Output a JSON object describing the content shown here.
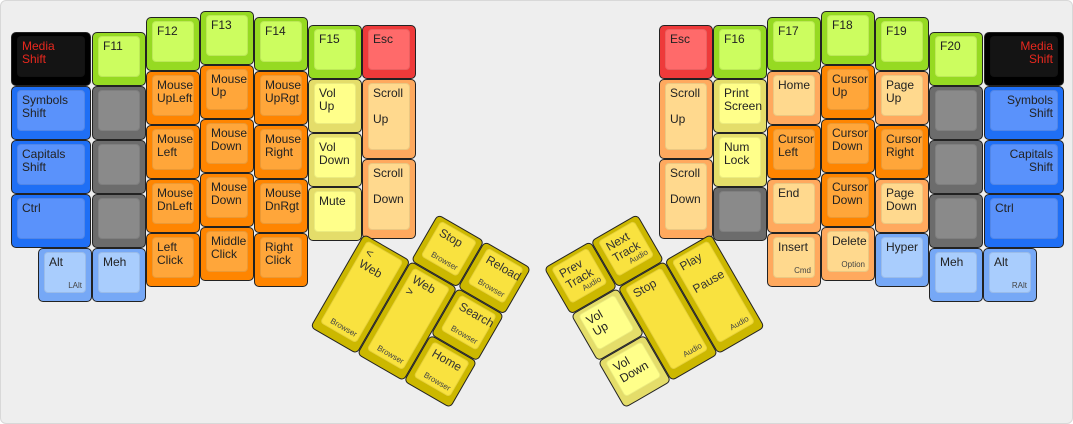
{
  "palette": {
    "black": {
      "outer": "#000000",
      "inner": "#141414",
      "text": "#e8281e"
    },
    "blue": {
      "outer": "#1f6ff5",
      "inner": "#5a92fb",
      "text": "#222222"
    },
    "lightblue": {
      "outer": "#76a8f6",
      "inner": "#a9cdfd",
      "text": "#222222"
    },
    "gray": {
      "outer": "#6c6c6c",
      "inner": "#8a8a8a",
      "text": "#222222"
    },
    "green": {
      "outer": "#96da22",
      "inner": "#ccfd5f",
      "text": "#222222"
    },
    "orange": {
      "outer": "#ff8500",
      "inner": "#ffa63a",
      "text": "#222222"
    },
    "lightorange": {
      "outer": "#ffa95e",
      "inner": "#ffd98e",
      "text": "#222222"
    },
    "lightyellow": {
      "outer": "#e4dd6a",
      "inner": "#ffff8a",
      "text": "#222222"
    },
    "red": {
      "outer": "#ee3a3a",
      "inner": "#ff6a6a",
      "text": "#222222"
    },
    "yellow": {
      "outer": "#ccb800",
      "inner": "#f9e23f",
      "text": "#333333"
    }
  },
  "left": {
    "keys": [
      {
        "label": "Media\nShift",
        "color": "black"
      },
      {
        "label": "Symbols\nShift",
        "color": "blue"
      },
      {
        "label": "Capitals\nShift",
        "color": "blue"
      },
      {
        "label": "Ctrl",
        "color": "blue"
      },
      {
        "label": "Alt",
        "sub": "LAlt",
        "color": "lightblue"
      },
      {
        "label": "F11",
        "color": "green"
      },
      {
        "label": "",
        "color": "gray"
      },
      {
        "label": "",
        "color": "gray"
      },
      {
        "label": "",
        "color": "gray"
      },
      {
        "label": "Meh",
        "color": "lightblue"
      },
      {
        "label": "F12",
        "color": "green"
      },
      {
        "label": "Mouse\nUpLeft",
        "color": "orange"
      },
      {
        "label": "Mouse\nLeft",
        "color": "orange"
      },
      {
        "label": "Mouse\nDnLeft",
        "color": "orange"
      },
      {
        "label": "Left\nClick",
        "color": "orange"
      },
      {
        "label": "F13",
        "color": "green"
      },
      {
        "label": "Mouse\nUp",
        "color": "orange"
      },
      {
        "label": "Mouse\nDown",
        "color": "orange"
      },
      {
        "label": "Mouse\nDown",
        "color": "orange"
      },
      {
        "label": "Middle\nClick",
        "color": "orange"
      },
      {
        "label": "F14",
        "color": "green"
      },
      {
        "label": "Mouse\nUpRgt",
        "color": "orange"
      },
      {
        "label": "Mouse\nRight",
        "color": "orange"
      },
      {
        "label": "Mouse\nDnRgt",
        "color": "orange"
      },
      {
        "label": "Right\nClick",
        "color": "orange"
      },
      {
        "label": "F15",
        "color": "green"
      },
      {
        "label": "Vol\nUp",
        "color": "lightyellow"
      },
      {
        "label": "Vol\nDown",
        "color": "lightyellow"
      },
      {
        "label": "Mute",
        "color": "lightyellow"
      },
      {
        "label": "Esc",
        "color": "red"
      },
      {
        "label": "Scroll\n\nUp",
        "color": "lightorange"
      },
      {
        "label": "Scroll\n\nDown",
        "color": "lightorange"
      }
    ],
    "thumb": [
      {
        "label": "Stop",
        "sub": "Browser",
        "color": "yellow"
      },
      {
        "label": "Reload",
        "sub": "Browser",
        "color": "yellow"
      },
      {
        "label": "< Web",
        "sub": "Browser",
        "color": "yellow"
      },
      {
        "label": "Web >",
        "sub": "Browser",
        "color": "yellow"
      },
      {
        "label": "Search",
        "sub": "Browser",
        "color": "yellow"
      },
      {
        "label": "Home",
        "sub": "Browser",
        "color": "yellow"
      }
    ]
  },
  "right": {
    "keys": [
      {
        "label": "Media\nShift",
        "color": "black"
      },
      {
        "label": "Symbols\nShift",
        "color": "blue"
      },
      {
        "label": "Capitals\nShift",
        "color": "blue"
      },
      {
        "label": "Ctrl",
        "color": "blue"
      },
      {
        "label": "Alt",
        "sub": "RAlt",
        "color": "lightblue"
      },
      {
        "label": "F20",
        "color": "green"
      },
      {
        "label": "",
        "color": "gray"
      },
      {
        "label": "",
        "color": "gray"
      },
      {
        "label": "",
        "color": "gray"
      },
      {
        "label": "Meh",
        "color": "lightblue"
      },
      {
        "label": "F19",
        "color": "green"
      },
      {
        "label": "Page\nUp",
        "color": "lightorange"
      },
      {
        "label": "Cursor\nRight",
        "color": "orange"
      },
      {
        "label": "Page\nDown",
        "color": "lightorange"
      },
      {
        "label": "Hyper",
        "color": "lightblue"
      },
      {
        "label": "F18",
        "color": "green"
      },
      {
        "label": "Cursor\nUp",
        "color": "orange"
      },
      {
        "label": "Cursor\nDown",
        "color": "orange"
      },
      {
        "label": "Cursor\nDown",
        "color": "orange"
      },
      {
        "label": "Delete",
        "sub": "Option",
        "color": "lightorange"
      },
      {
        "label": "F17",
        "color": "green"
      },
      {
        "label": "Home",
        "color": "lightorange"
      },
      {
        "label": "Cursor\nLeft",
        "color": "orange"
      },
      {
        "label": "End",
        "color": "lightorange"
      },
      {
        "label": "Insert",
        "sub": "Cmd",
        "color": "lightorange"
      },
      {
        "label": "F16",
        "color": "green"
      },
      {
        "label": "Print\nScreen",
        "color": "lightyellow"
      },
      {
        "label": "Num\nLock",
        "color": "lightyellow"
      },
      {
        "label": "",
        "color": "gray"
      },
      {
        "label": "Esc",
        "color": "red"
      },
      {
        "label": "Scroll\n\nUp",
        "color": "lightorange"
      },
      {
        "label": "Scroll\n\nDown",
        "color": "lightorange"
      }
    ],
    "thumb": [
      {
        "label": "Prev\nTrack",
        "sub": "Audio",
        "color": "yellow"
      },
      {
        "label": "Next\nTrack",
        "sub": "Audio",
        "color": "yellow"
      },
      {
        "label": "Vol\nUp",
        "color": "lightyellow"
      },
      {
        "label": "Stop",
        "sub": "Audio",
        "color": "yellow"
      },
      {
        "label": "Play\n\nPause",
        "sub": "Audio",
        "color": "yellow"
      },
      {
        "label": "Vol\nDown",
        "color": "lightyellow"
      }
    ]
  }
}
